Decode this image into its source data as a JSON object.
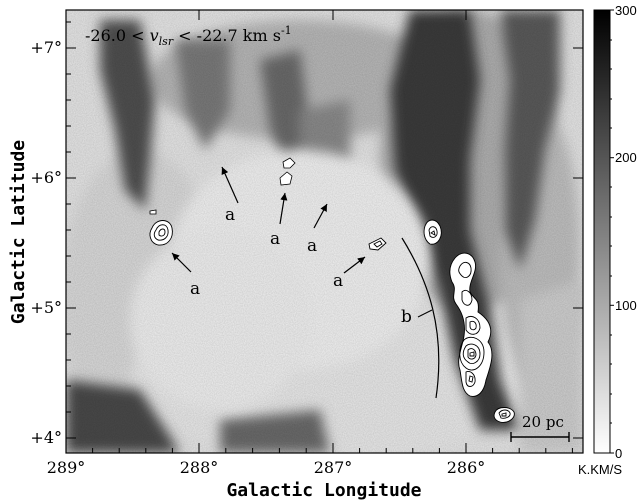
{
  "figure": {
    "velocity_label": {
      "prefix": "-26.0 < ",
      "symbol": "v",
      "subscript": "lsr",
      "suffix": " < -22.7 km s",
      "superscript": "-1"
    },
    "xlabel": "Galactic Longitude",
    "ylabel": "Galactic Latitude",
    "x_ticks": [
      "289°",
      "288°",
      "287°",
      "286°"
    ],
    "y_ticks": [
      "+7°",
      "+6°",
      "+5°",
      "+4°"
    ],
    "colorbar": {
      "ticks": [
        "300",
        "200",
        "100",
        "0"
      ],
      "unit": "K.KM/S",
      "range": [
        0,
        300
      ]
    },
    "scale_bar_label": "20 pc",
    "annotations": {
      "a_labels": [
        "a",
        "a",
        "a",
        "a",
        "a"
      ],
      "b_label": "b"
    }
  },
  "chart_data": {
    "type": "heatmap",
    "title": "-26.0 < vlsr < -22.7 km s-1",
    "xlabel": "Galactic Longitude",
    "ylabel": "Galactic Latitude",
    "xlim": [
      289,
      285.2
    ],
    "ylim": [
      3.9,
      7.3
    ],
    "colorbar_range": [
      0,
      300
    ],
    "colorbar_unit": "K.KM/S",
    "scale": "grayscale"
  }
}
